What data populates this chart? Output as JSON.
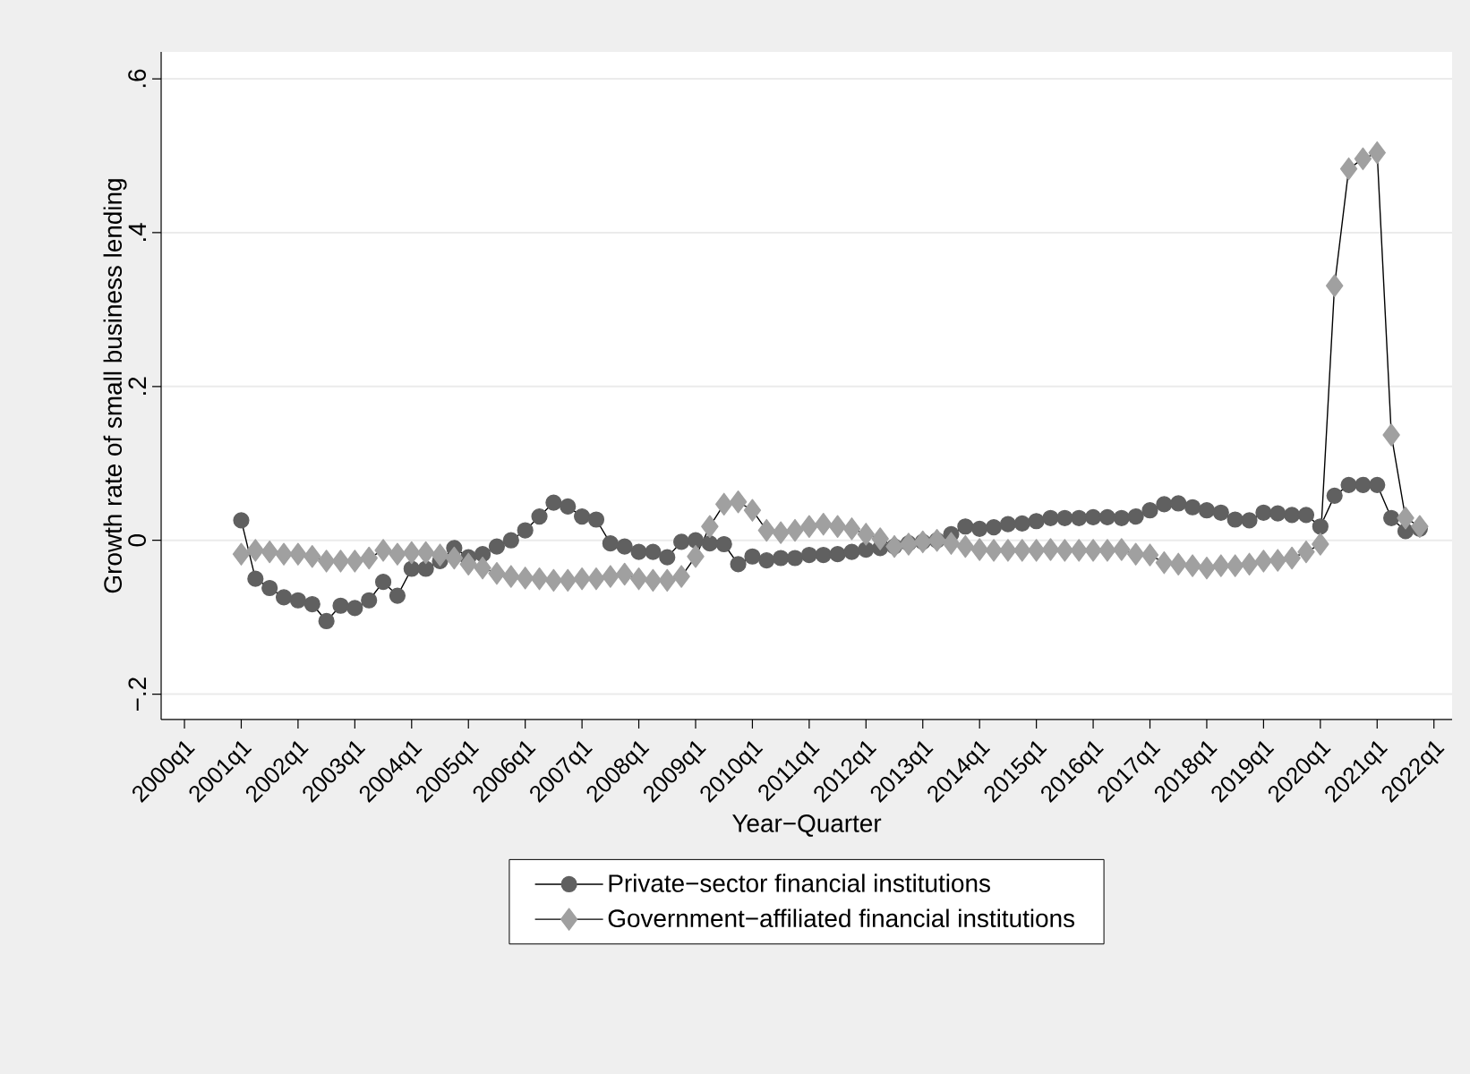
{
  "chart_data": {
    "type": "line",
    "xlabel": "Year−Quarter",
    "ylabel": "Growth rate of small business lending",
    "categories": [
      "2000q1",
      null,
      null,
      null,
      "2001q1",
      null,
      null,
      null,
      "2002q1",
      null,
      null,
      null,
      "2003q1",
      null,
      null,
      null,
      "2004q1",
      null,
      null,
      null,
      "2005q1",
      null,
      null,
      null,
      "2006q1",
      null,
      null,
      null,
      "2007q1",
      null,
      null,
      null,
      "2008q1",
      null,
      null,
      null,
      "2009q1",
      null,
      null,
      null,
      "2010q1",
      null,
      null,
      null,
      "2011q1",
      null,
      null,
      null,
      "2012q1",
      null,
      null,
      null,
      "2013q1",
      null,
      null,
      null,
      "2014q1",
      null,
      null,
      null,
      "2015q1",
      null,
      null,
      null,
      "2016q1",
      null,
      null,
      null,
      "2017q1",
      null,
      null,
      null,
      "2018q1",
      null,
      null,
      null,
      "2019q1",
      null,
      null,
      null,
      "2020q1",
      null,
      null,
      null,
      "2021q1",
      null,
      null,
      null,
      "2022q1"
    ],
    "series": [
      {
        "name": "Private−sector financial institutions",
        "color": "#606060",
        "marker": "circle",
        "values": [
          null,
          null,
          null,
          null,
          0.026,
          -0.05,
          -0.062,
          -0.074,
          -0.078,
          -0.083,
          -0.105,
          -0.085,
          -0.088,
          -0.078,
          -0.054,
          -0.072,
          -0.037,
          -0.037,
          -0.027,
          -0.01,
          -0.022,
          -0.018,
          -0.008,
          0.0,
          0.013,
          0.031,
          0.049,
          0.044,
          0.031,
          0.027,
          -0.004,
          -0.008,
          -0.015,
          -0.015,
          -0.022,
          -0.002,
          0.0,
          -0.004,
          -0.005,
          -0.031,
          -0.021,
          -0.026,
          -0.023,
          -0.023,
          -0.019,
          -0.019,
          -0.018,
          -0.015,
          -0.012,
          -0.01,
          -0.008,
          -0.004,
          -0.002,
          0.0,
          0.008,
          0.018,
          0.015,
          0.017,
          0.021,
          0.022,
          0.025,
          0.029,
          0.029,
          0.029,
          0.03,
          0.03,
          0.029,
          0.031,
          0.039,
          0.047,
          0.048,
          0.043,
          0.039,
          0.036,
          0.027,
          0.026,
          0.036,
          0.035,
          0.033,
          0.033,
          0.018,
          0.058,
          0.072,
          0.072,
          0.072,
          0.029,
          0.012,
          0.015,
          null
        ]
      },
      {
        "name": "Government−affiliated financial institutions",
        "color": "#a0a0a0",
        "marker": "diamond",
        "values": [
          null,
          null,
          null,
          null,
          -0.018,
          -0.013,
          -0.015,
          -0.018,
          -0.018,
          -0.021,
          -0.027,
          -0.027,
          -0.027,
          -0.023,
          -0.013,
          -0.018,
          -0.016,
          -0.016,
          -0.019,
          -0.023,
          -0.031,
          -0.036,
          -0.043,
          -0.047,
          -0.049,
          -0.05,
          -0.052,
          -0.052,
          -0.05,
          -0.05,
          -0.047,
          -0.044,
          -0.05,
          -0.052,
          -0.052,
          -0.047,
          -0.021,
          0.018,
          0.047,
          0.05,
          0.039,
          0.013,
          0.01,
          0.013,
          0.018,
          0.021,
          0.018,
          0.015,
          0.008,
          0.002,
          -0.008,
          -0.005,
          -0.002,
          0.0,
          -0.004,
          -0.008,
          -0.012,
          -0.013,
          -0.013,
          -0.013,
          -0.013,
          -0.012,
          -0.013,
          -0.013,
          -0.013,
          -0.013,
          -0.012,
          -0.018,
          -0.019,
          -0.029,
          -0.031,
          -0.033,
          -0.036,
          -0.033,
          -0.033,
          -0.031,
          -0.027,
          -0.026,
          -0.023,
          -0.015,
          -0.005,
          0.331,
          0.483,
          0.496,
          0.504,
          0.137,
          0.029,
          0.018,
          null
        ]
      }
    ],
    "ylim": [
      -0.233,
      0.635
    ],
    "yticks": [
      {
        "value": -0.2,
        "label": "−.2"
      },
      0,
      {
        "value": 0.2,
        "label": ".2"
      },
      {
        "value": 0.4,
        "label": ".4"
      },
      {
        "value": 0.6,
        "label": ".6"
      }
    ],
    "grid": "y",
    "legend": "bottom",
    "line_style": "solid"
  }
}
